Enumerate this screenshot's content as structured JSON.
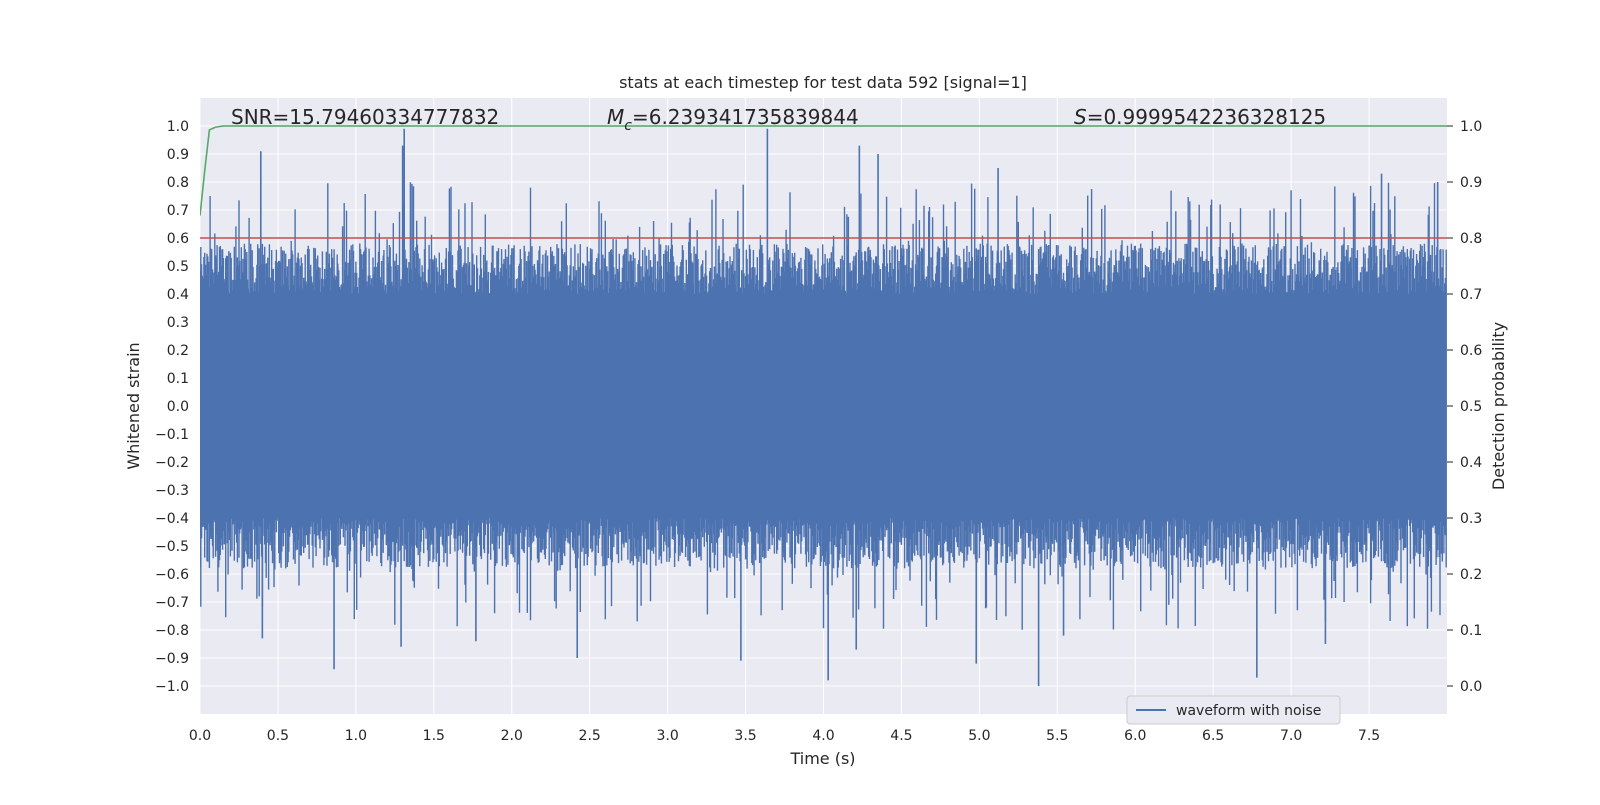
{
  "chart_data": {
    "type": "line",
    "title": "stats at each timestep for test data 592 [signal=1]",
    "xlabel": "Time (s)",
    "ylabel": "Whitened strain",
    "ylabel_right": "Detection probability",
    "xlim": [
      0.0,
      8.0
    ],
    "ylim": [
      -1.1,
      1.1
    ],
    "ylim_right": [
      -0.05,
      1.05
    ],
    "grid": true,
    "x_ticks": [
      "0.0",
      "0.5",
      "1.0",
      "1.5",
      "2.0",
      "2.5",
      "3.0",
      "3.5",
      "4.0",
      "4.5",
      "5.0",
      "5.5",
      "6.0",
      "6.5",
      "7.0",
      "7.5"
    ],
    "y_ticks": [
      "1.0",
      "0.9",
      "0.8",
      "0.7",
      "0.6",
      "0.5",
      "0.4",
      "0.3",
      "0.2",
      "0.1",
      "0.0",
      "−0.1",
      "−0.2",
      "−0.3",
      "−0.4",
      "−0.5",
      "−0.6",
      "−0.7",
      "−0.8",
      "−0.9",
      "−1.0"
    ],
    "y_ticks_right": [
      "1.0",
      "0.9",
      "0.8",
      "0.7",
      "0.6",
      "0.5",
      "0.4",
      "0.3",
      "0.2",
      "0.1",
      "0.0"
    ],
    "annotations": {
      "snr": "SNR=15.79460334777832",
      "mc_symbol": "M",
      "mc_sub": "c",
      "mc_value": "=6.239341735839844",
      "s_symbol": "S",
      "s_value": "=0.9999542236328125"
    },
    "legend": {
      "placement": "lower-right",
      "entries": [
        "waveform with noise"
      ]
    },
    "series": [
      {
        "name": "waveform with noise",
        "axis": "left",
        "color": "#4c72b0",
        "envelope_note": "dense noisy waveform filling roughly -0.45 to 0.45 with peaks to about ±1.0",
        "peaks": [
          [
            0.39,
            0.91
          ],
          [
            1.3,
            0.93
          ],
          [
            1.31,
            0.99
          ],
          [
            3.64,
            0.99
          ],
          [
            4.23,
            0.93
          ],
          [
            4.35,
            0.9
          ],
          [
            5.12,
            0.85
          ],
          [
            7.58,
            0.83
          ],
          [
            7.94,
            0.8
          ],
          [
            0.86,
            -0.94
          ],
          [
            0.4,
            -0.83
          ],
          [
            1.29,
            -0.86
          ],
          [
            2.42,
            -0.9
          ],
          [
            3.47,
            -0.91
          ],
          [
            4.03,
            -0.98
          ],
          [
            4.21,
            -0.87
          ],
          [
            4.98,
            -0.92
          ],
          [
            5.38,
            -1.0
          ],
          [
            6.78,
            -0.97
          ],
          [
            7.22,
            -0.85
          ],
          [
            5.54,
            -0.82
          ],
          [
            1.77,
            -0.84
          ]
        ]
      },
      {
        "name": "",
        "axis": "right",
        "color": "#55a868",
        "x": [
          0.0,
          0.03,
          0.06,
          0.1,
          0.15,
          0.3,
          8.0
        ],
        "y": [
          0.84,
          0.92,
          0.993,
          0.998,
          1.0,
          1.0,
          1.0
        ]
      },
      {
        "name": "",
        "axis": "right",
        "color": "#c44e52",
        "x": [
          0.0,
          8.0
        ],
        "y": [
          0.8,
          0.8
        ]
      }
    ]
  }
}
